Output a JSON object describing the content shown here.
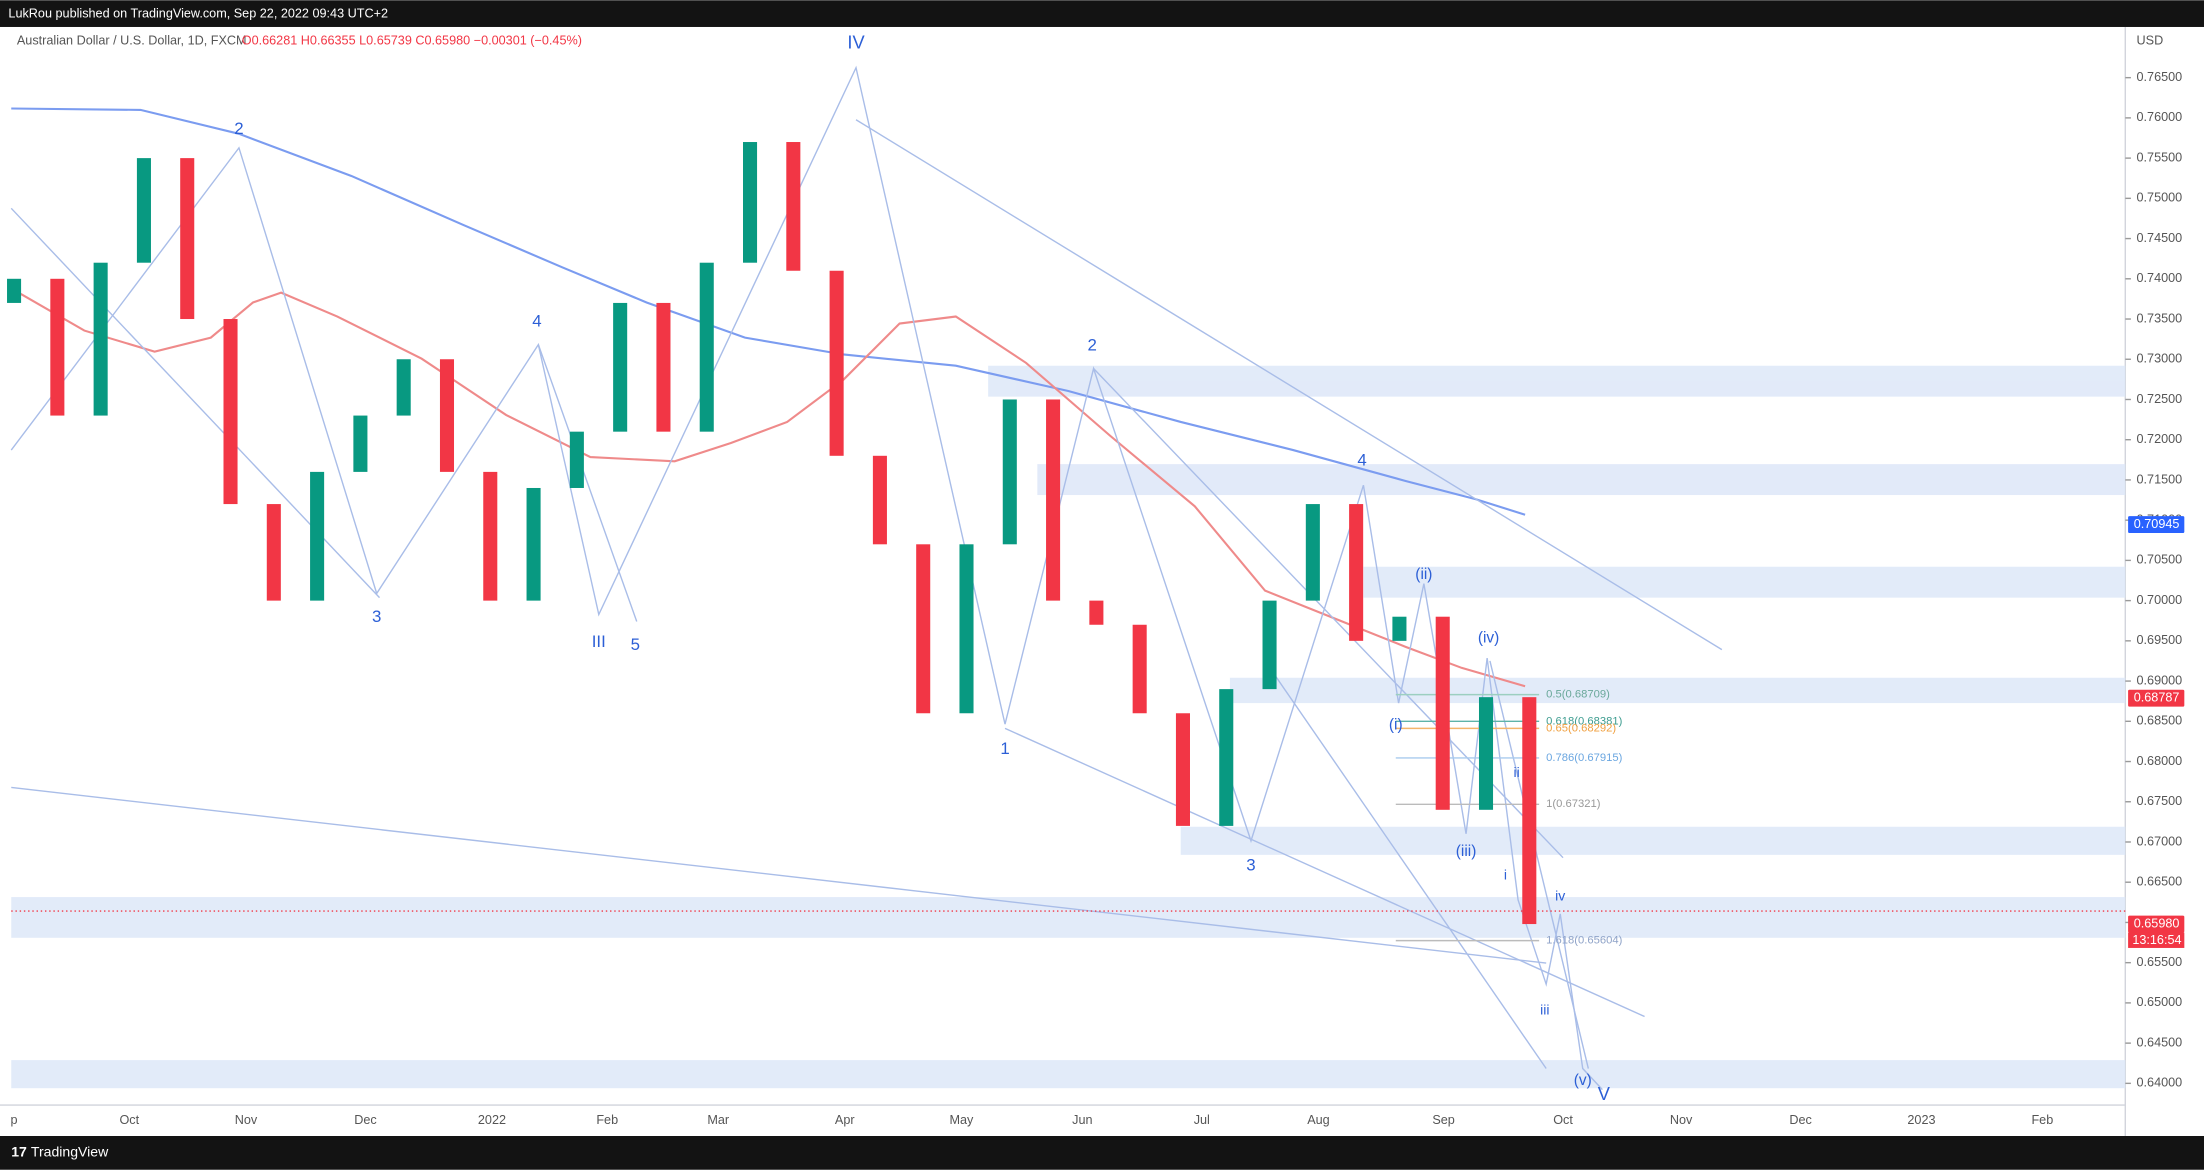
{
  "header": {
    "publisher": "LukRou published on TradingView.com, Sep 22, 2022 09:43 UTC+2",
    "footer": "TradingView"
  },
  "chart_data": {
    "type": "candlestick",
    "title": "Australian Dollar / U.S. Dollar, 1D, FXCM",
    "ohlc_text": "O0.66281 H0.66355 L0.65739 C0.65980 −0.00301 (−0.45%)",
    "currency": "USD",
    "up_color": "#089981",
    "down_color": "#f23645",
    "categories": [
      null,
      null,
      null,
      null,
      null,
      null,
      null,
      null,
      null,
      null,
      null,
      null,
      null,
      null,
      null,
      null,
      null,
      null,
      null,
      null,
      null,
      null,
      null,
      null,
      null,
      null,
      null,
      null,
      null,
      null,
      null,
      null,
      null,
      null,
      null,
      null
    ],
    "open": [
      0.737,
      0.74,
      0.723,
      0.742,
      0.755,
      0.735,
      0.712,
      0.7,
      0.716,
      0.723,
      0.73,
      0.716,
      0.7,
      0.714,
      0.721,
      0.737,
      0.721,
      0.742,
      0.757,
      0.741,
      0.718,
      0.707,
      0.686,
      0.707,
      0.725,
      0.7,
      0.697,
      0.686,
      0.672,
      0.689,
      0.7,
      0.712,
      0.695,
      0.698,
      0.674,
      0.688
    ],
    "close": [
      0.74,
      0.723,
      0.742,
      0.755,
      0.735,
      0.712,
      0.7,
      0.716,
      0.723,
      0.73,
      0.716,
      0.7,
      0.714,
      0.721,
      0.737,
      0.721,
      0.742,
      0.757,
      0.741,
      0.718,
      0.707,
      0.686,
      0.707,
      0.725,
      0.7,
      0.697,
      0.686,
      0.672,
      0.689,
      0.7,
      0.712,
      0.695,
      0.698,
      0.674,
      0.688,
      0.6598
    ],
    "ylim": [
      0.6373,
      0.7713
    ],
    "yticks": [
      {
        "value": 0.765,
        "label": "0.76500"
      },
      {
        "value": 0.76,
        "label": "0.76000"
      },
      {
        "value": 0.755,
        "label": "0.75500"
      },
      {
        "value": 0.75,
        "label": "0.75000"
      },
      {
        "value": 0.745,
        "label": "0.74500"
      },
      {
        "value": 0.74,
        "label": "0.74000"
      },
      {
        "value": 0.735,
        "label": "0.73500"
      },
      {
        "value": 0.73,
        "label": "0.73000"
      },
      {
        "value": 0.725,
        "label": "0.72500"
      },
      {
        "value": 0.72,
        "label": "0.72000"
      },
      {
        "value": 0.715,
        "label": "0.71500"
      },
      {
        "value": 0.71,
        "label": "0.71000"
      },
      {
        "value": 0.705,
        "label": "0.70500"
      },
      {
        "value": 0.7,
        "label": "0.70000"
      },
      {
        "value": 0.695,
        "label": "0.69500"
      },
      {
        "value": 0.69,
        "label": "0.69000"
      },
      {
        "value": 0.685,
        "label": "0.68500"
      },
      {
        "value": 0.68,
        "label": "0.68000"
      },
      {
        "value": 0.675,
        "label": "0.67500"
      },
      {
        "value": 0.67,
        "label": "0.67000"
      },
      {
        "value": 0.665,
        "label": "0.66500"
      },
      {
        "value": 0.66,
        "label": "0.66000"
      },
      {
        "value": 0.655,
        "label": "0.65500"
      },
      {
        "value": 0.65,
        "label": "0.65000"
      },
      {
        "value": 0.645,
        "label": "0.64500"
      },
      {
        "value": 0.64,
        "label": "0.64000"
      }
    ],
    "x_labels": [
      "p",
      "Oct",
      "Nov",
      "Dec",
      "2022",
      "Feb",
      "Mar",
      "Apr",
      "May",
      "Jun",
      "Jul",
      "Aug",
      "Sep",
      "Oct",
      "Nov",
      "Dec",
      "2023",
      "Feb"
    ],
    "price_tags": [
      {
        "value": 0.70945,
        "label": "0.70945",
        "color": "#2962ff"
      },
      {
        "value": 0.68787,
        "label": "0.68787",
        "color": "#f23645"
      },
      {
        "value": 0.6598,
        "label": "0.65980",
        "color": "#f23645"
      }
    ],
    "countdown": "13:16:54",
    "fib_labels": [
      "0.5(0.68709)",
      "0.618(0.68381)",
      "0.65(0.68292)",
      "0.786(0.67915)",
      "1(0.67321)",
      "1.618(0.65604)"
    ],
    "wave_labels": [
      "IV",
      "2",
      "4",
      "3",
      "III",
      "5",
      "1",
      "2",
      "3",
      "4",
      "V",
      "(ii)",
      "(iv)",
      "(i)",
      "(iii)",
      "i",
      "ii",
      "iii",
      "iv",
      "(v)"
    ]
  }
}
